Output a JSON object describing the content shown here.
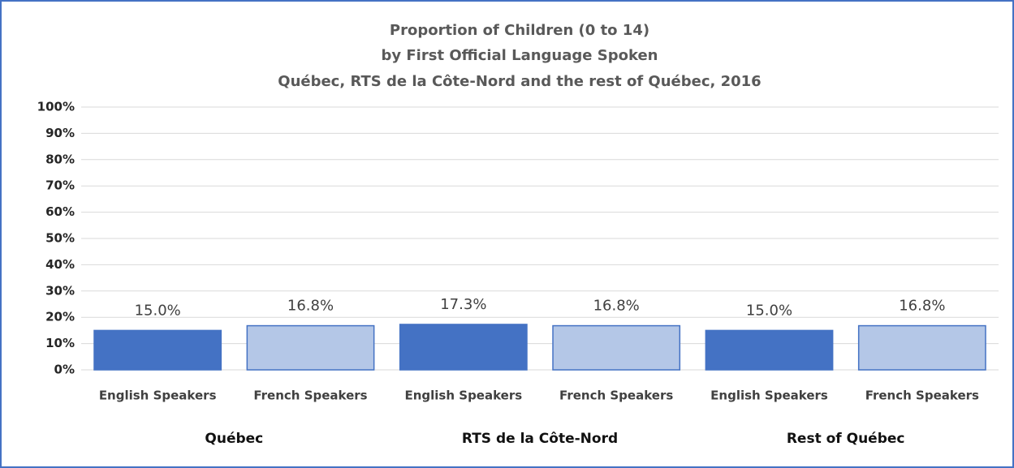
{
  "chart_data": {
    "type": "bar",
    "title": [
      "Proportion of Children (0 to 14)",
      "by First Official Language Spoken",
      "Québec, RTS de la Côte-Nord and the rest of Québec, 2016"
    ],
    "categories": [
      "English Speakers",
      "French Speakers",
      "English Speakers",
      "French Speakers",
      "English Speakers",
      "French Speakers"
    ],
    "groups": [
      "Québec",
      "RTS de la Côte-Nord",
      "Rest of Québec"
    ],
    "values": [
      15.0,
      16.8,
      17.3,
      16.8,
      15.0,
      16.8
    ],
    "value_labels": [
      "15.0%",
      "16.8%",
      "17.3%",
      "16.8%",
      "15.0%",
      "16.8%"
    ],
    "colors": [
      "#4472c4",
      "#b4c7e7",
      "#4472c4",
      "#b4c7e7",
      "#4472c4",
      "#b4c7e7"
    ],
    "edgecolor": "#4472c4",
    "ylim": [
      0,
      100
    ],
    "yticks": [
      {
        "value": 0,
        "label": "0%"
      },
      {
        "value": 10,
        "label": "10%"
      },
      {
        "value": 20,
        "label": "20%"
      },
      {
        "value": 30,
        "label": "30%"
      },
      {
        "value": 40,
        "label": "40%"
      },
      {
        "value": 50,
        "label": "50%"
      },
      {
        "value": 60,
        "label": "60%"
      },
      {
        "value": 70,
        "label": "70%"
      },
      {
        "value": 80,
        "label": "80%"
      },
      {
        "value": 90,
        "label": "90%"
      },
      {
        "value": 100,
        "label": "100%"
      }
    ],
    "grid": true
  }
}
